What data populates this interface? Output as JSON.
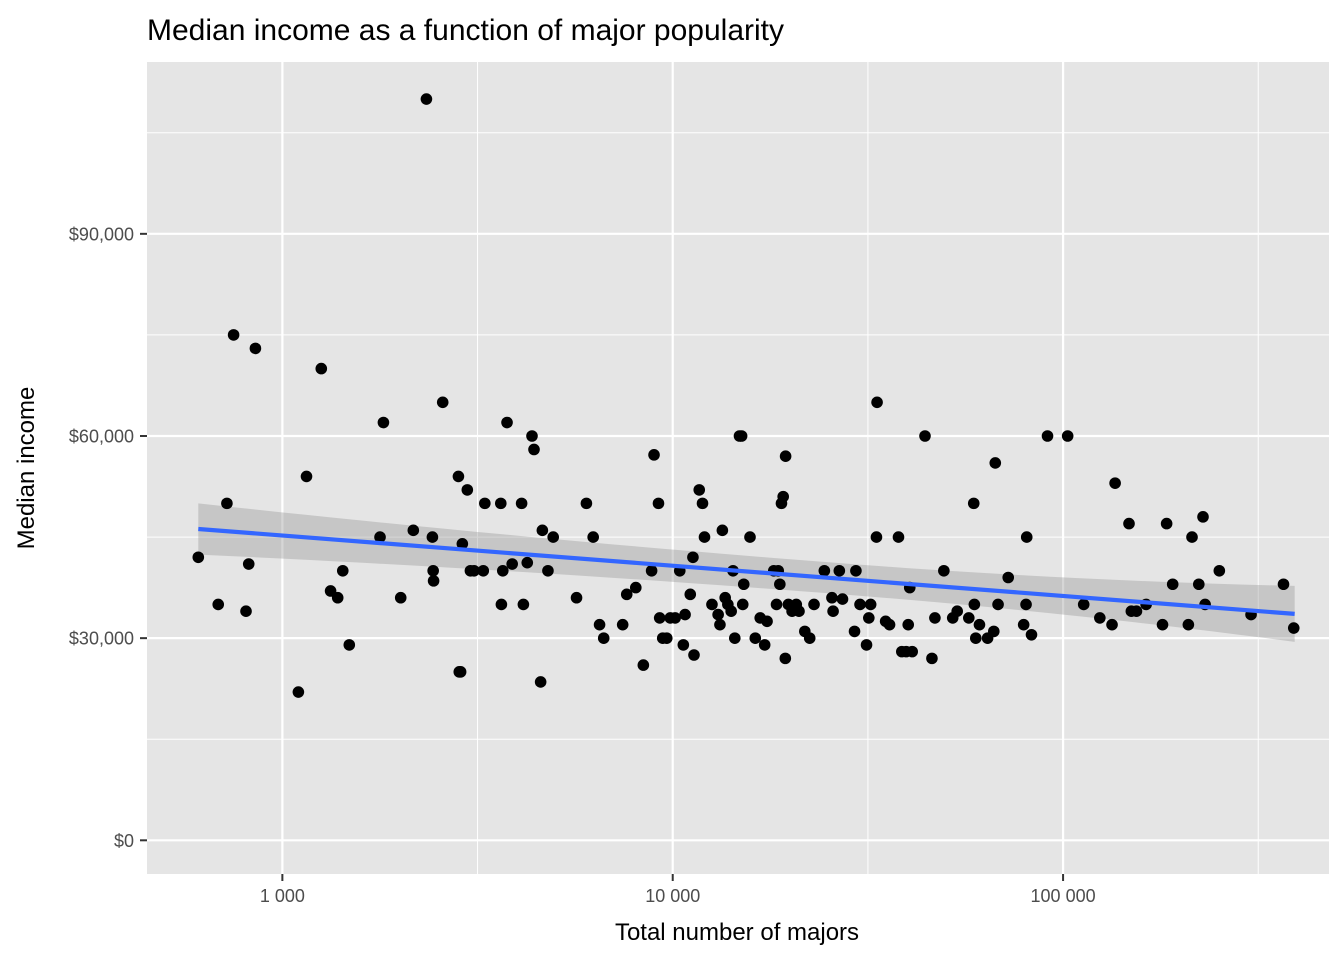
{
  "chart_data": {
    "type": "scatter",
    "title": "Median income as a function of major popularity",
    "xlabel": "Total number of majors",
    "ylabel": "Median income",
    "x_scale": "log10",
    "xlim": [
      450,
      480000
    ],
    "ylim": [
      -5000,
      115500
    ],
    "x_ticks": [
      {
        "value": 1000,
        "label": "1 000"
      },
      {
        "value": 10000,
        "label": "10 000"
      },
      {
        "value": 100000,
        "label": "100 000"
      }
    ],
    "x_minor_ticks": [
      3162,
      31623,
      316228
    ],
    "y_ticks": [
      {
        "value": 0,
        "label": "$0"
      },
      {
        "value": 30000,
        "label": "$30,000"
      },
      {
        "value": 60000,
        "label": "$60,000"
      },
      {
        "value": 90000,
        "label": "$90,000"
      }
    ],
    "y_minor_ticks": [
      15000,
      45000,
      75000,
      105000
    ],
    "grid": true,
    "legend": "none",
    "colors": {
      "panel": "#e5e5e5",
      "grid": "#ffffff",
      "points": "#000000",
      "trend": "#3366ff",
      "ribbon": "#999999"
    },
    "trend": {
      "method": "lm",
      "x_range": [
        609,
        392000
      ],
      "y_at_start": 46200,
      "y_at_end": 33600,
      "band_at_start": [
        42500,
        50100
      ],
      "band_at_end": [
        29600,
        37900
      ]
    },
    "points": [
      [
        609,
        42000
      ],
      [
        685,
        35000
      ],
      [
        721,
        50000
      ],
      [
        750,
        75000
      ],
      [
        807,
        34000
      ],
      [
        820,
        41000
      ],
      [
        853,
        73000
      ],
      [
        1099,
        22000
      ],
      [
        1153,
        54000
      ],
      [
        1258,
        70000
      ],
      [
        1329,
        37000
      ],
      [
        1386,
        36000
      ],
      [
        1428,
        40000
      ],
      [
        1484,
        29000
      ],
      [
        1779,
        45000
      ],
      [
        1815,
        62000
      ],
      [
        2010,
        36000
      ],
      [
        2165,
        46000
      ],
      [
        2339,
        110000
      ],
      [
        2423,
        45000
      ],
      [
        2434,
        40000
      ],
      [
        2440,
        38500
      ],
      [
        2575,
        65000
      ],
      [
        2825,
        54000
      ],
      [
        2839,
        25000
      ],
      [
        2862,
        25000
      ],
      [
        2891,
        44000
      ],
      [
        2977,
        52000
      ],
      [
        3032,
        40000
      ],
      [
        3098,
        40000
      ],
      [
        3271,
        40000
      ],
      [
        3301,
        50000
      ],
      [
        3627,
        50000
      ],
      [
        3640,
        35000
      ],
      [
        3670,
        40000
      ],
      [
        3763,
        62000
      ],
      [
        3879,
        41000
      ],
      [
        4101,
        50000
      ],
      [
        4144,
        35000
      ],
      [
        4240,
        41200
      ],
      [
        4360,
        60000
      ],
      [
        4412,
        58000
      ],
      [
        4588,
        23500
      ],
      [
        4635,
        46000
      ],
      [
        4790,
        40000
      ],
      [
        4941,
        45000
      ],
      [
        5670,
        36000
      ],
      [
        6010,
        50000
      ],
      [
        6255,
        45000
      ],
      [
        6495,
        32000
      ],
      [
        6656,
        30000
      ],
      [
        7444,
        32000
      ],
      [
        7624,
        36500
      ],
      [
        8042,
        37500
      ],
      [
        8409,
        26000
      ],
      [
        8829,
        40000
      ],
      [
        8956,
        57200
      ],
      [
        9194,
        50000
      ],
      [
        9260,
        33000
      ],
      [
        9427,
        30000
      ],
      [
        9654,
        30000
      ],
      [
        9856,
        33000
      ],
      [
        10144,
        33000
      ],
      [
        10424,
        40000
      ],
      [
        10646,
        29000
      ],
      [
        10755,
        33500
      ],
      [
        11090,
        36500
      ],
      [
        11266,
        42000
      ],
      [
        11337,
        27500
      ],
      [
        11693,
        52000
      ],
      [
        11920,
        50000
      ],
      [
        12061,
        45000
      ],
      [
        12604,
        35000
      ],
      [
        13072,
        33500
      ],
      [
        13212,
        32000
      ],
      [
        13402,
        46000
      ],
      [
        13627,
        36000
      ],
      [
        13843,
        35000
      ],
      [
        14117,
        34000
      ],
      [
        14272,
        40000
      ],
      [
        14422,
        30000
      ],
      [
        14826,
        60000
      ],
      [
        15014,
        60000
      ],
      [
        15114,
        35000
      ],
      [
        15203,
        38000
      ],
      [
        15775,
        45000
      ],
      [
        16274,
        30000
      ],
      [
        16754,
        33000
      ],
      [
        17202,
        29000
      ],
      [
        17445,
        32500
      ],
      [
        18151,
        40000
      ],
      [
        18446,
        35000
      ],
      [
        18632,
        40000
      ],
      [
        18810,
        38000
      ],
      [
        18991,
        50000
      ],
      [
        19187,
        51000
      ],
      [
        19428,
        27000
      ],
      [
        19462,
        57000
      ],
      [
        19783,
        35000
      ],
      [
        20220,
        34000
      ],
      [
        20727,
        35000
      ],
      [
        21061,
        34000
      ],
      [
        21797,
        31000
      ],
      [
        22436,
        30000
      ],
      [
        23015,
        35000
      ],
      [
        24457,
        40000
      ],
      [
        25580,
        36000
      ],
      [
        25753,
        34000
      ],
      [
        26718,
        40000
      ],
      [
        27222,
        35800
      ],
      [
        29224,
        31000
      ],
      [
        29465,
        40000
      ],
      [
        30187,
        35000
      ],
      [
        31369,
        29000
      ],
      [
        31794,
        33000
      ],
      [
        32142,
        35000
      ],
      [
        33259,
        45000
      ],
      [
        33381,
        65000
      ],
      [
        35109,
        32500
      ],
      [
        35932,
        32000
      ],
      [
        37875,
        45000
      ],
      [
        38624,
        28000
      ],
      [
        39634,
        28000
      ],
      [
        40114,
        32000
      ],
      [
        40477,
        37500
      ],
      [
        41066,
        28000
      ],
      [
        44286,
        60000
      ],
      [
        46138,
        27000
      ],
      [
        46953,
        33000
      ],
      [
        49498,
        40000
      ],
      [
        52153,
        33000
      ],
      [
        53552,
        34000
      ],
      [
        57344,
        33000
      ],
      [
        59040,
        50000
      ],
      [
        59256,
        35000
      ],
      [
        59751,
        30000
      ],
      [
        61064,
        32000
      ],
      [
        64065,
        30000
      ],
      [
        66453,
        31000
      ],
      [
        67039,
        56000
      ],
      [
        68147,
        35000
      ],
      [
        72357,
        39000
      ],
      [
        79256,
        32000
      ],
      [
        80379,
        35000
      ],
      [
        80701,
        45000
      ],
      [
        83002,
        30500
      ],
      [
        91227,
        60000
      ],
      [
        102742,
        60000
      ],
      [
        112934,
        35000
      ],
      [
        124212,
        33000
      ],
      [
        133482,
        32000
      ],
      [
        135928,
        53000
      ],
      [
        147538,
        47000
      ],
      [
        149587,
        34000
      ],
      [
        154166,
        34000
      ],
      [
        163224,
        35000
      ],
      [
        179779,
        32000
      ],
      [
        184198,
        47000
      ],
      [
        190898,
        38000
      ],
      [
        209394,
        32000
      ],
      [
        213946,
        45000
      ],
      [
        222681,
        38000
      ],
      [
        228284,
        48000
      ],
      [
        231120,
        35000
      ],
      [
        251342,
        40000
      ],
      [
        303094,
        33500
      ],
      [
        367006,
        38000
      ],
      [
        389893,
        31500
      ]
    ]
  }
}
